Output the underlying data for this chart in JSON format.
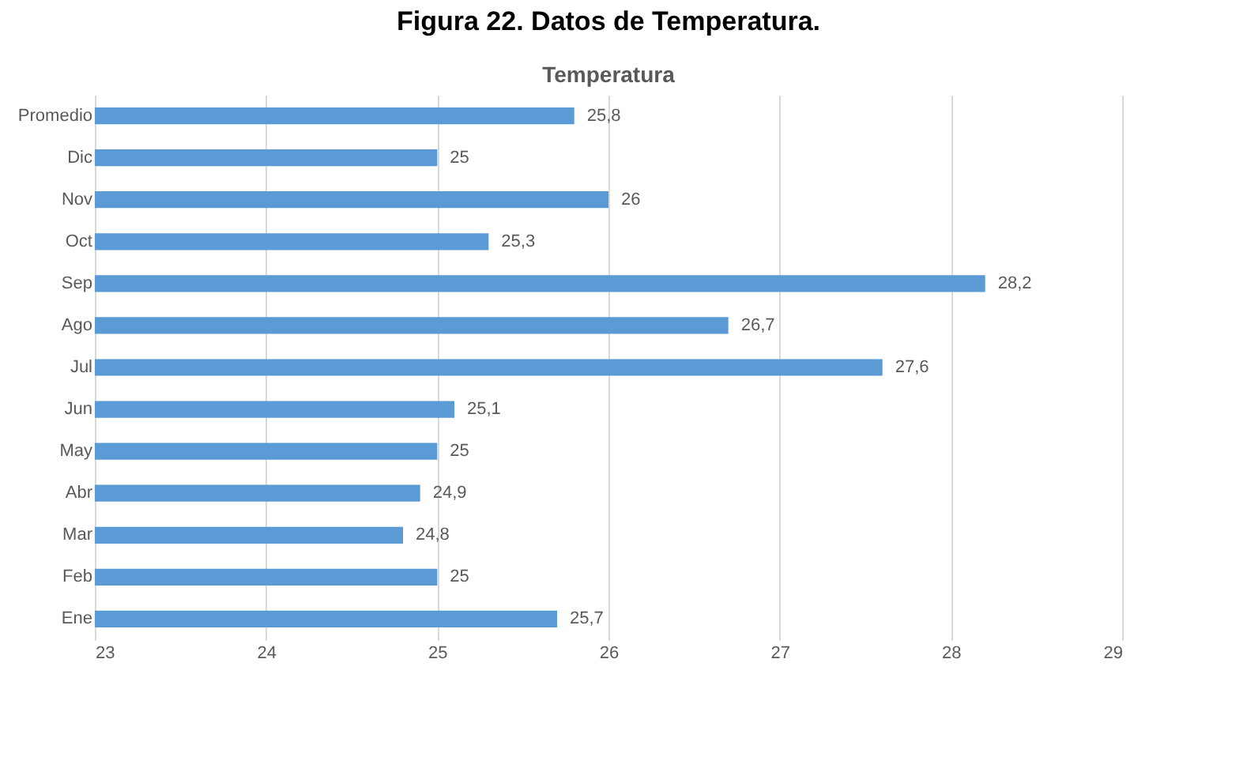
{
  "chart_data": {
    "type": "bar",
    "orientation": "horizontal",
    "title": "Figura 22. Datos de Temperatura.",
    "subtitle": "Temperatura",
    "categories": [
      "Promedio",
      "Dic",
      "Nov",
      "Oct",
      "Sep",
      "Ago",
      "Jul",
      "Jun",
      "May",
      "Abr",
      "Mar",
      "Feb",
      "Ene"
    ],
    "values": [
      25.8,
      25,
      26,
      25.3,
      28.2,
      26.7,
      27.6,
      25.1,
      25,
      24.9,
      24.8,
      25,
      25.7
    ],
    "value_labels": [
      "25,8",
      "25",
      "26",
      "25,3",
      "28,2",
      "26,7",
      "27,6",
      "25,1",
      "25",
      "24,9",
      "24,8",
      "25",
      "25,7"
    ],
    "color": "#5b9bd5",
    "xlim": [
      23,
      29
    ],
    "xticks": [
      23,
      24,
      25,
      26,
      27,
      28,
      29
    ],
    "grid": "x"
  }
}
